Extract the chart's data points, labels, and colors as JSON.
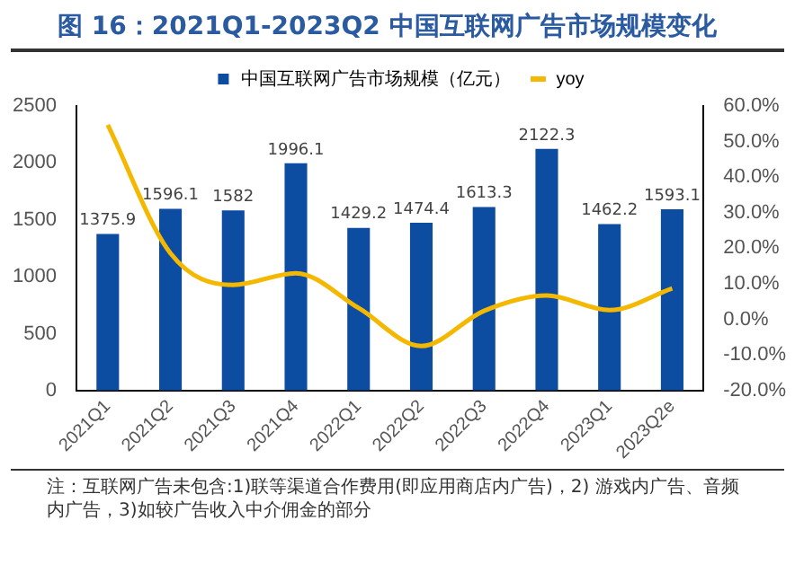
{
  "chart_data": {
    "type": "bar",
    "title": "图 16：2021Q1-2023Q2 中国互联网广告市场规模变化",
    "categories": [
      "2021Q1",
      "2021Q2",
      "2021Q3",
      "2021Q4",
      "2022Q1",
      "2022Q2",
      "2022Q3",
      "2022Q4",
      "2023Q1",
      "2023Q2e"
    ],
    "series": [
      {
        "name": "中国互联网广告市场规模（亿元）",
        "color": "#0c4da2",
        "values": [
          1375.9,
          1596.1,
          1582,
          1996.1,
          1429.2,
          1474.4,
          1613.3,
          2122.3,
          1462.2,
          1593.1
        ],
        "data_labels": true
      },
      {
        "name": "yoy",
        "type": "line",
        "axis": "y2",
        "color": "#f5b800",
        "values": [
          54.7,
          18.6,
          9.7,
          13,
          3.2,
          -7.5,
          2.4,
          6.7,
          2.6,
          8.7
        ],
        "marker": "none"
      }
    ],
    "ylim": [
      0,
      2500
    ],
    "yticks": [
      0,
      500,
      1000,
      1500,
      2000,
      2500
    ],
    "y2lim": [
      -20,
      60
    ],
    "y2ticks": [
      {
        "value": -20,
        "label": "-20.0%"
      },
      {
        "value": -10,
        "label": "-10.0%"
      },
      {
        "value": 0,
        "label": "0.0%"
      },
      {
        "value": 10,
        "label": "10.0%"
      },
      {
        "value": 20,
        "label": "20.0%"
      },
      {
        "value": 30,
        "label": "30.0%"
      },
      {
        "value": 40,
        "label": "40.0%"
      },
      {
        "value": 50,
        "label": "50.0%"
      },
      {
        "value": 60,
        "label": "60.0%"
      }
    ],
    "grid": false,
    "legend": "top",
    "annotations": [
      "注：互联网广告未包含:1)联等渠道合作费用(即应用商店内广告)，2) 游戏内广告、音频内广告，3)如较广告收入中介佣金的部分"
    ]
  }
}
